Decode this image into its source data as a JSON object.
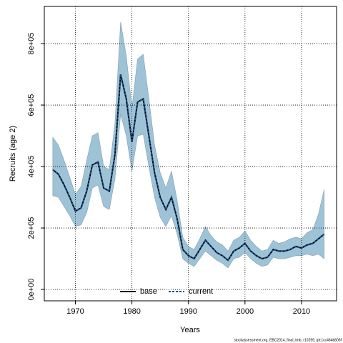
{
  "chart_data": {
    "type": "line",
    "x_label": "Years",
    "y_label": "Recruits (age 2)",
    "footer": "stockassessment.org, EBC2014_final_tmb, r10299, git:1cc464b606f",
    "x": [
      1966,
      1967,
      1968,
      1969,
      1970,
      1971,
      1972,
      1973,
      1974,
      1975,
      1976,
      1977,
      1978,
      1979,
      1980,
      1981,
      1982,
      1983,
      1984,
      1985,
      1986,
      1987,
      1988,
      1989,
      1990,
      1991,
      1992,
      1993,
      1994,
      1995,
      1996,
      1997,
      1998,
      1999,
      2000,
      2001,
      2002,
      2003,
      2004,
      2005,
      2006,
      2007,
      2008,
      2009,
      2010,
      2011,
      2012,
      2013,
      2014
    ],
    "series": [
      {
        "name": "base",
        "color": "#000000",
        "dash": false,
        "values": [
          390000,
          375000,
          340000,
          300000,
          255000,
          265000,
          320000,
          405000,
          415000,
          330000,
          320000,
          440000,
          700000,
          620000,
          480000,
          610000,
          620000,
          500000,
          380000,
          300000,
          260000,
          300000,
          230000,
          130000,
          110000,
          100000,
          130000,
          160000,
          140000,
          120000,
          110000,
          95000,
          125000,
          135000,
          150000,
          125000,
          110000,
          100000,
          105000,
          130000,
          125000,
          125000,
          130000,
          140000,
          135000,
          145000,
          150000,
          165000,
          180000
        ]
      },
      {
        "name": "current",
        "color": "#1a4f8a",
        "dash": true,
        "values": [
          390000,
          375000,
          340000,
          300000,
          255000,
          265000,
          320000,
          405000,
          415000,
          330000,
          320000,
          440000,
          700000,
          620000,
          480000,
          610000,
          620000,
          500000,
          380000,
          300000,
          260000,
          300000,
          230000,
          130000,
          110000,
          100000,
          130000,
          160000,
          140000,
          120000,
          110000,
          95000,
          125000,
          135000,
          150000,
          125000,
          110000,
          100000,
          105000,
          130000,
          125000,
          125000,
          130000,
          140000,
          135000,
          145000,
          150000,
          165000,
          180000
        ]
      }
    ],
    "band": {
      "color": "#9fc3d6",
      "upper": [
        495000,
        470000,
        420000,
        365000,
        310000,
        335000,
        420000,
        500000,
        510000,
        400000,
        390000,
        540000,
        870000,
        760000,
        590000,
        750000,
        765000,
        620000,
        470000,
        380000,
        330000,
        385000,
        290000,
        170000,
        140000,
        130000,
        165000,
        205000,
        175000,
        155000,
        145000,
        125000,
        160000,
        170000,
        190000,
        160000,
        140000,
        125000,
        130000,
        160000,
        150000,
        155000,
        165000,
        170000,
        165000,
        185000,
        195000,
        245000,
        325000
      ],
      "lower": [
        305000,
        300000,
        270000,
        240000,
        205000,
        210000,
        250000,
        330000,
        340000,
        270000,
        260000,
        360000,
        570000,
        500000,
        385000,
        500000,
        505000,
        400000,
        300000,
        235000,
        205000,
        240000,
        180000,
        100000,
        85000,
        75000,
        100000,
        125000,
        110000,
        95000,
        85000,
        70000,
        100000,
        105000,
        120000,
        100000,
        85000,
        75000,
        80000,
        105000,
        100000,
        100000,
        105000,
        110000,
        110000,
        115000,
        110000,
        115000,
        100000
      ]
    },
    "xlim": [
      1964.5,
      2016.2
    ],
    "ylim": [
      -37000,
      921000
    ],
    "xticks": [
      1970,
      1980,
      1990,
      2000,
      2010
    ],
    "yticks": [
      {
        "value": 0,
        "label": "0e+00"
      },
      {
        "value": 200000,
        "label": "2e+05"
      },
      {
        "value": 400000,
        "label": "4e+05"
      },
      {
        "value": 600000,
        "label": "6e+05"
      },
      {
        "value": 800000,
        "label": "8e+05"
      }
    ],
    "grid": true,
    "legend": "bottom"
  }
}
